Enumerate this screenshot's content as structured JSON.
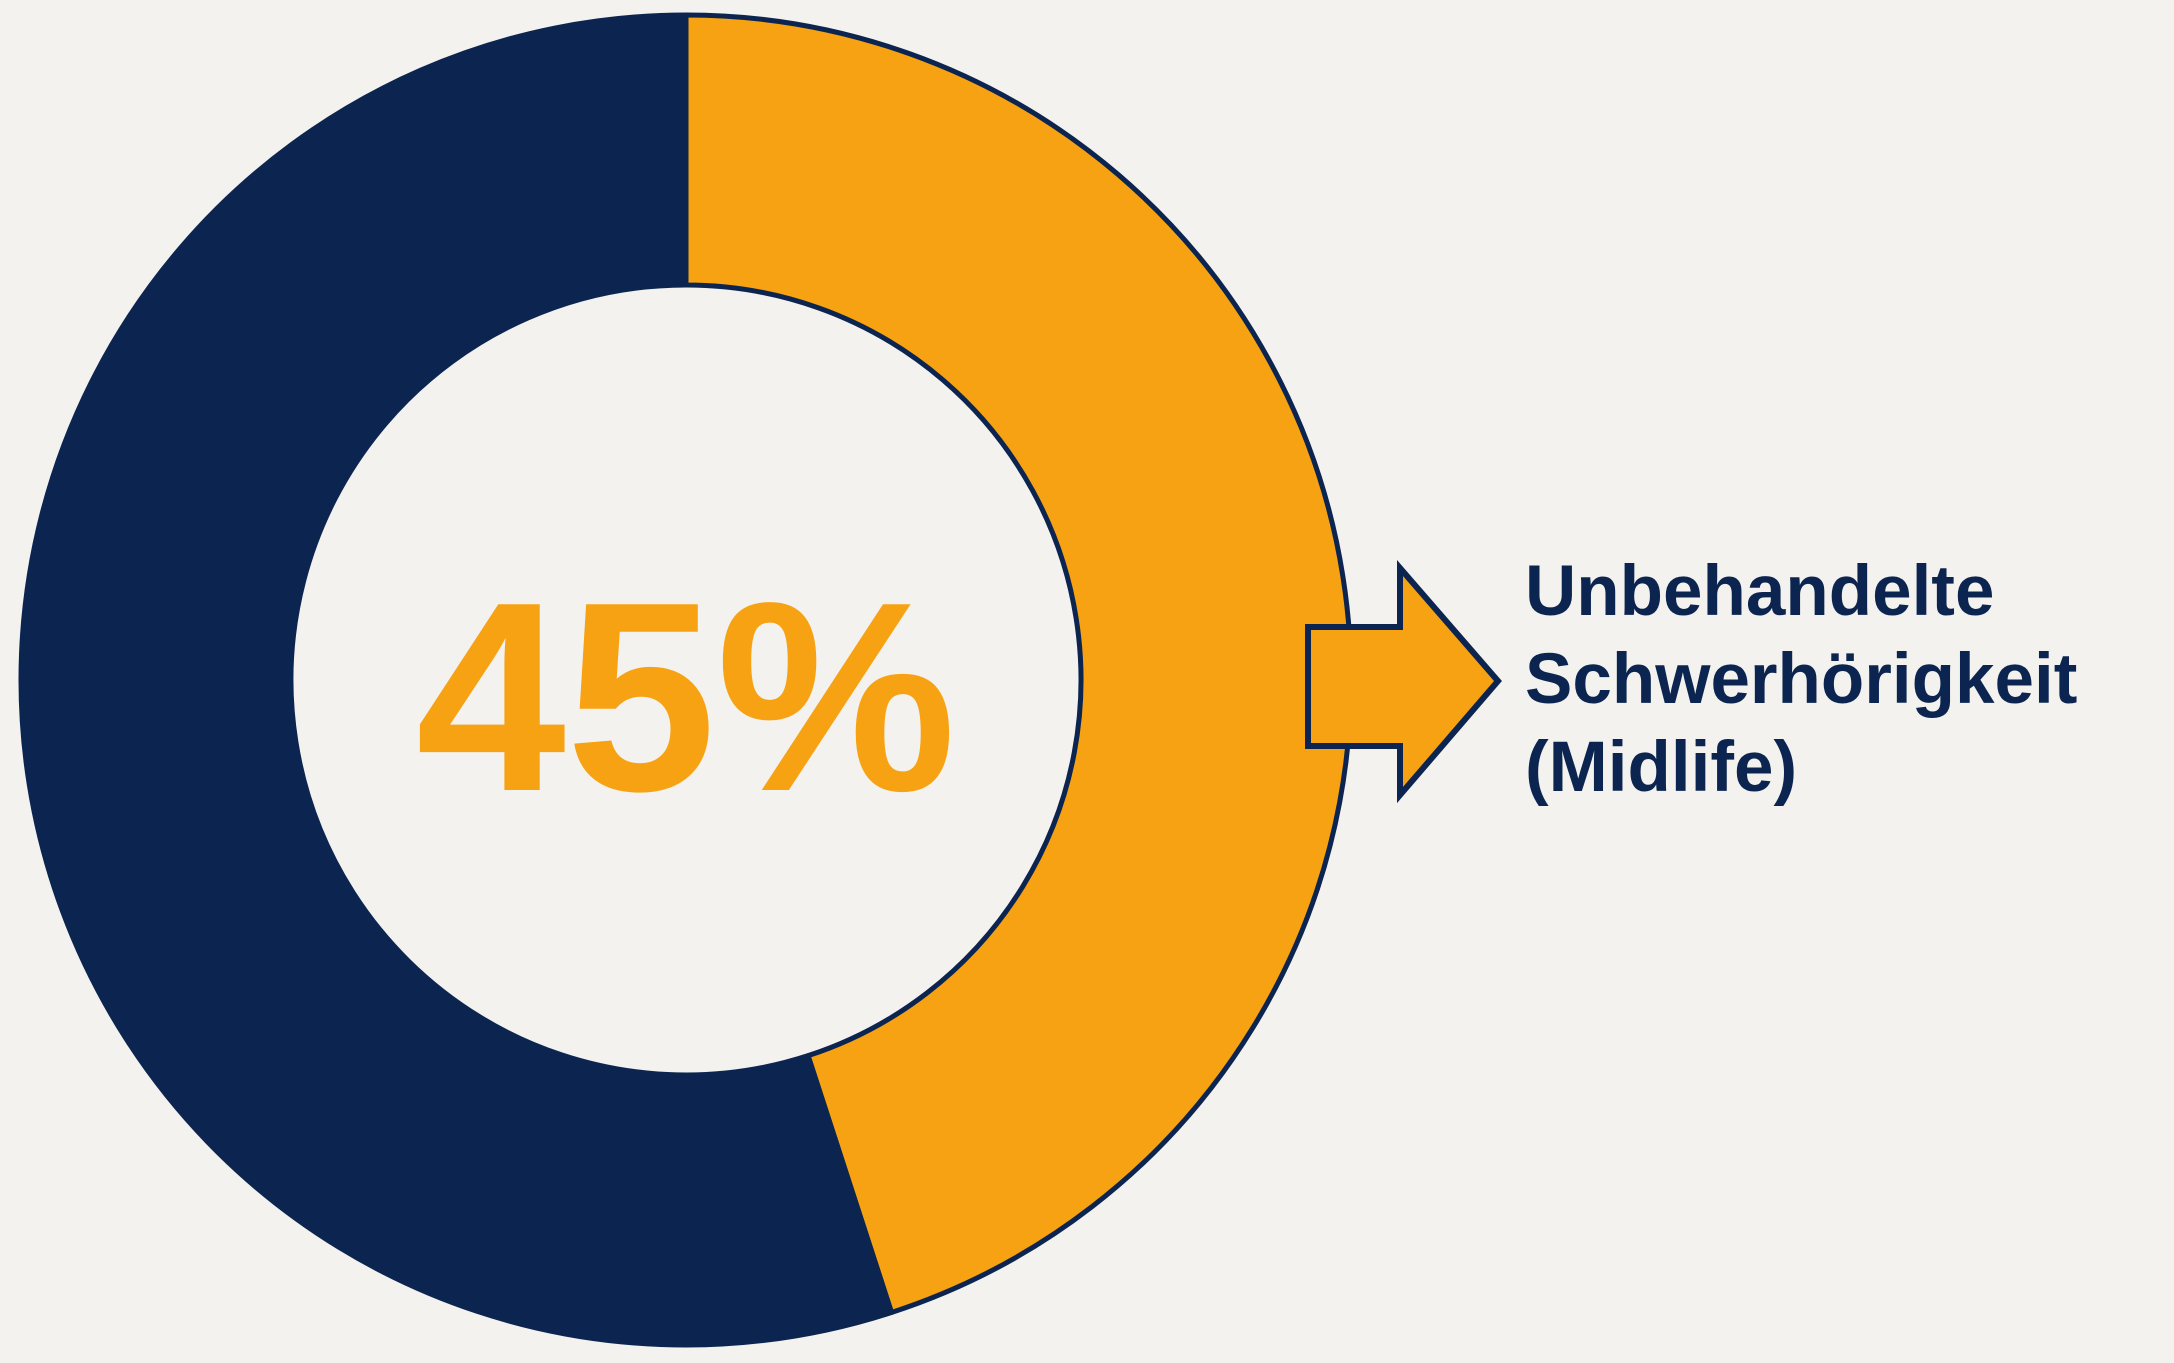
{
  "chart_data": {
    "type": "pie",
    "variant": "donut",
    "slices": [
      {
        "label": "Unbehandelte Schwerhörigkeit (Midlife)",
        "value": 45,
        "color": "#f7a212"
      },
      {
        "label": "",
        "value": 55,
        "color": "#0c2550"
      }
    ],
    "center_text": "45%",
    "callout": {
      "lines": [
        "Unbehandelte",
        "Schwerhörigkeit",
        "(Midlife)"
      ],
      "color": "#0c2550"
    },
    "colors": {
      "highlight": "#f7a212",
      "rest": "#0c2550",
      "outline": "#0c2550",
      "background": "#f3f2ee"
    }
  }
}
